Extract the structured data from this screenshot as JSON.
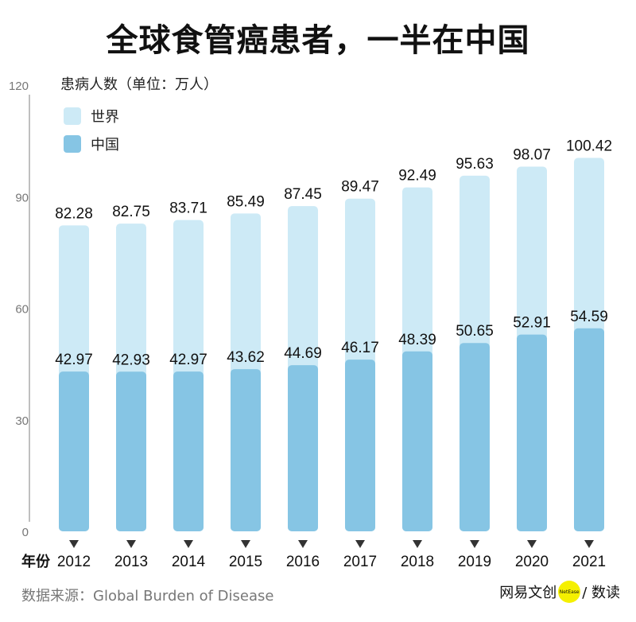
{
  "chart_data": {
    "type": "bar",
    "title": "全球食管癌患者，一半在中国",
    "ylabel": "患病人数（单位：万人）",
    "xlabel": "年份",
    "categories": [
      "2012",
      "2013",
      "2014",
      "2015",
      "2016",
      "2017",
      "2018",
      "2019",
      "2020",
      "2021"
    ],
    "series": [
      {
        "name": "世界",
        "values": [
          82.28,
          82.75,
          83.71,
          85.49,
          87.45,
          89.47,
          92.49,
          95.63,
          98.07,
          100.42
        ],
        "color": "#cdeaf6"
      },
      {
        "name": "中国",
        "values": [
          42.97,
          42.93,
          42.97,
          43.62,
          44.69,
          46.17,
          48.39,
          50.65,
          52.91,
          54.59
        ],
        "color": "#86c5e4"
      }
    ],
    "ylim": [
      0,
      120
    ],
    "yticks": [
      "0",
      "30",
      "60",
      "90",
      "120"
    ],
    "grid": false,
    "legend": "top-left"
  },
  "footer": {
    "source": "数据来源：Global Burden of Disease",
    "logo_text": "网易文创",
    "logo_badge": "NetEase",
    "logo_suffix": "/ 数读"
  }
}
